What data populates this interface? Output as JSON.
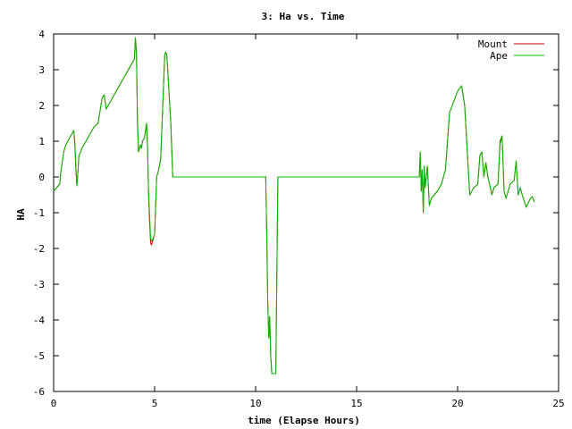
{
  "chart_data": {
    "type": "line",
    "title": "3: Ha vs. Time",
    "xlabel": "time (Elapse Hours)",
    "ylabel": "HA",
    "xlim": [
      0,
      25
    ],
    "ylim": [
      -6,
      4
    ],
    "xticks": [
      0,
      5,
      10,
      15,
      20,
      25
    ],
    "yticks": [
      -6,
      -5,
      -4,
      -3,
      -2,
      -1,
      0,
      1,
      2,
      3,
      4
    ],
    "grid": false,
    "legend_position": "top-right",
    "series": [
      {
        "name": "Mount",
        "color": "#cc0000",
        "x": [
          0.0,
          0.3,
          0.35,
          0.5,
          0.6,
          0.8,
          1.0,
          1.05,
          1.1,
          1.15,
          1.2,
          1.25,
          1.3,
          1.4,
          1.6,
          1.8,
          2.0,
          2.2,
          2.4,
          2.5,
          2.6,
          2.8,
          3.0,
          3.2,
          3.4,
          3.6,
          3.8,
          4.0,
          4.05,
          4.1,
          4.15,
          4.2,
          4.25,
          4.3,
          4.35,
          4.4,
          4.5,
          4.6,
          4.65,
          4.7,
          4.75,
          4.8,
          4.85,
          4.9,
          5.0,
          5.1,
          5.2,
          5.3,
          5.5,
          5.55,
          5.6,
          5.65,
          5.7,
          5.8,
          5.9,
          10.5,
          10.55,
          10.6,
          10.65,
          10.7,
          10.75,
          10.8,
          10.9,
          11.0,
          11.1,
          18.0,
          18.1,
          18.15,
          18.2,
          18.25,
          18.3,
          18.35,
          18.4,
          18.5,
          18.6,
          18.7,
          19.0,
          19.2,
          19.4,
          19.6,
          19.8,
          20.0,
          20.2,
          20.35,
          20.45,
          20.6,
          20.8,
          21.0,
          21.1,
          21.2,
          21.3,
          21.4,
          21.5,
          21.7,
          21.8,
          22.0,
          22.1,
          22.2,
          22.3,
          22.4,
          22.6,
          22.8,
          22.9,
          23.0,
          23.1,
          23.2,
          23.4,
          23.6,
          23.7,
          23.8
        ],
        "values": [
          -0.4,
          -0.2,
          0.1,
          0.7,
          0.9,
          1.1,
          1.3,
          0.9,
          0.2,
          -0.25,
          0.1,
          0.6,
          0.65,
          0.8,
          1.0,
          1.2,
          1.4,
          1.5,
          2.2,
          2.3,
          1.9,
          2.1,
          2.3,
          2.5,
          2.7,
          2.9,
          3.1,
          3.3,
          3.9,
          3.5,
          1.5,
          0.7,
          0.8,
          0.9,
          0.8,
          1.0,
          1.1,
          1.5,
          0.8,
          -0.5,
          -1.2,
          -1.85,
          -1.9,
          -1.8,
          -1.6,
          0.0,
          0.2,
          0.5,
          3.4,
          3.5,
          3.4,
          3.0,
          2.5,
          1.5,
          0.0,
          0.0,
          -1.5,
          -3.5,
          -4.5,
          -3.9,
          -5.0,
          -5.5,
          -5.5,
          -5.5,
          0.0,
          0.0,
          0.0,
          0.7,
          -0.4,
          0.2,
          -1.0,
          0.3,
          -0.3,
          0.3,
          -0.8,
          -0.6,
          -0.4,
          -0.2,
          0.2,
          1.8,
          2.1,
          2.4,
          2.55,
          2.0,
          1.0,
          -0.5,
          -0.3,
          -0.2,
          0.6,
          0.7,
          0.0,
          0.4,
          0.0,
          -0.5,
          -0.3,
          -0.2,
          1.0,
          1.15,
          -0.4,
          -0.6,
          -0.2,
          -0.1,
          0.45,
          -0.5,
          -0.3,
          -0.5,
          -0.85,
          -0.6,
          -0.55,
          -0.7
        ]
      },
      {
        "name": "Ape",
        "color": "#00bb00",
        "x": [
          0.0,
          0.3,
          0.35,
          0.5,
          0.6,
          0.8,
          1.0,
          1.05,
          1.1,
          1.15,
          1.2,
          1.25,
          1.3,
          1.4,
          1.6,
          1.8,
          2.0,
          2.2,
          2.4,
          2.5,
          2.6,
          2.8,
          3.0,
          3.2,
          3.4,
          3.6,
          3.8,
          4.0,
          4.05,
          4.1,
          4.15,
          4.2,
          4.25,
          4.3,
          4.35,
          4.4,
          4.5,
          4.6,
          4.65,
          4.7,
          4.75,
          4.8,
          4.85,
          4.9,
          5.0,
          5.1,
          5.2,
          5.3,
          5.5,
          5.55,
          5.6,
          5.65,
          5.7,
          5.8,
          5.9,
          10.5,
          10.55,
          10.6,
          10.65,
          10.7,
          10.75,
          10.8,
          10.9,
          11.0,
          11.1,
          18.0,
          18.1,
          18.15,
          18.2,
          18.25,
          18.3,
          18.35,
          18.4,
          18.5,
          18.6,
          18.7,
          19.0,
          19.2,
          19.4,
          19.6,
          19.8,
          20.0,
          20.2,
          20.35,
          20.45,
          20.6,
          20.8,
          21.0,
          21.1,
          21.2,
          21.3,
          21.4,
          21.5,
          21.7,
          21.8,
          22.0,
          22.1,
          22.2,
          22.3,
          22.4,
          22.6,
          22.8,
          22.9,
          23.0,
          23.1,
          23.2,
          23.4,
          23.6,
          23.7,
          23.8
        ],
        "values": [
          -0.4,
          -0.2,
          0.1,
          0.7,
          0.9,
          1.1,
          1.3,
          1.0,
          0.3,
          -0.25,
          0.1,
          0.6,
          0.65,
          0.8,
          1.0,
          1.2,
          1.4,
          1.5,
          2.2,
          2.3,
          1.9,
          2.1,
          2.3,
          2.5,
          2.7,
          2.9,
          3.1,
          3.3,
          3.9,
          3.4,
          1.7,
          0.7,
          0.8,
          0.9,
          0.8,
          1.0,
          1.1,
          1.5,
          0.9,
          -0.4,
          -1.0,
          -1.7,
          -1.8,
          -1.75,
          -1.6,
          0.0,
          0.2,
          0.5,
          3.4,
          3.5,
          3.4,
          3.0,
          2.5,
          1.5,
          0.0,
          0.0,
          -1.5,
          -3.5,
          -4.5,
          -3.9,
          -5.0,
          -5.5,
          -5.5,
          -5.5,
          0.0,
          0.0,
          0.0,
          0.7,
          -0.4,
          0.2,
          -1.0,
          0.3,
          -0.3,
          0.3,
          -0.8,
          -0.6,
          -0.4,
          -0.2,
          0.2,
          1.8,
          2.1,
          2.4,
          2.55,
          2.0,
          1.0,
          -0.5,
          -0.3,
          -0.2,
          0.6,
          0.7,
          0.0,
          0.4,
          0.0,
          -0.5,
          -0.3,
          -0.2,
          0.9,
          1.15,
          -0.4,
          -0.6,
          -0.2,
          -0.1,
          0.45,
          -0.5,
          -0.3,
          -0.5,
          -0.85,
          -0.6,
          -0.55,
          -0.7
        ]
      }
    ]
  }
}
